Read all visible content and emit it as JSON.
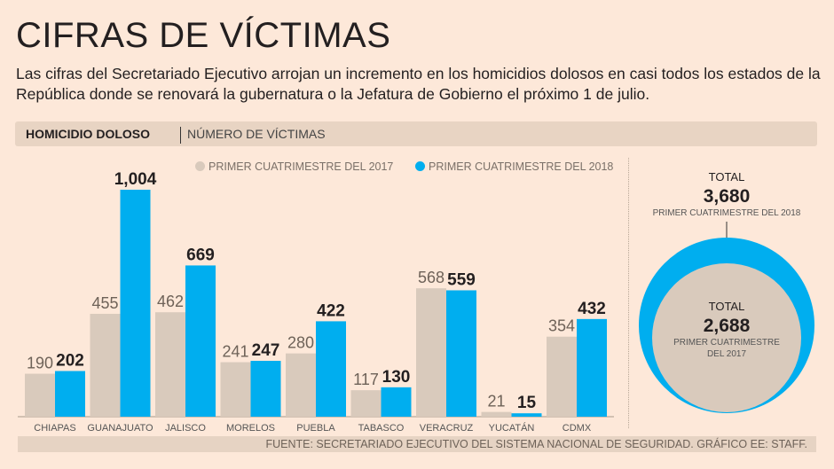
{
  "title": "CIFRAS DE VÍCTIMAS",
  "subtitle": "Las cifras del Secretariado Ejecutivo arrojan un incremento en los homicidios dolosos en casi todos los estados de la República donde se renovará la gubernatura o la Jefatura de Gobierno el próximo 1 de julio.",
  "header": {
    "label": "HOMICIDIO DOLOSO",
    "sublabel": "NÚMERO DE VÍCTIMAS"
  },
  "footer": "FUENTE: SECRETARIADO EJECUTIVO DEL SISTEMA NACIONAL DE SEGURIDAD.  GRÁFICO EE: STAFF.",
  "colors": {
    "s2017": "#d9cabc",
    "s2018": "#00aeef"
  },
  "chart_data": [
    {
      "type": "bar",
      "categories": [
        "CHIAPAS",
        "GUANAJUATO",
        "JALISCO",
        "MORELOS",
        "PUEBLA",
        "TABASCO",
        "VERACRUZ",
        "YUCATÁN",
        "CDMX"
      ],
      "series": [
        {
          "name": "PRIMER CUATRIMESTRE DEL 2017",
          "values": [
            190,
            455,
            462,
            241,
            280,
            117,
            568,
            21,
            354
          ]
        },
        {
          "name": "PRIMER CUATRIMESTRE DEL 2018",
          "values": [
            202,
            1004,
            669,
            247,
            422,
            130,
            559,
            15,
            432
          ]
        }
      ],
      "legend": "top"
    },
    {
      "type": "nested-circles",
      "outer": {
        "label": "TOTAL",
        "value": "3,680",
        "caption": "PRIMER CUATRIMESTRE DEL 2018"
      },
      "inner": {
        "label": "TOTAL",
        "value": "2,688",
        "caption1": "PRIMER CUATRIMESTRE",
        "caption2": "DEL 2017"
      }
    }
  ]
}
